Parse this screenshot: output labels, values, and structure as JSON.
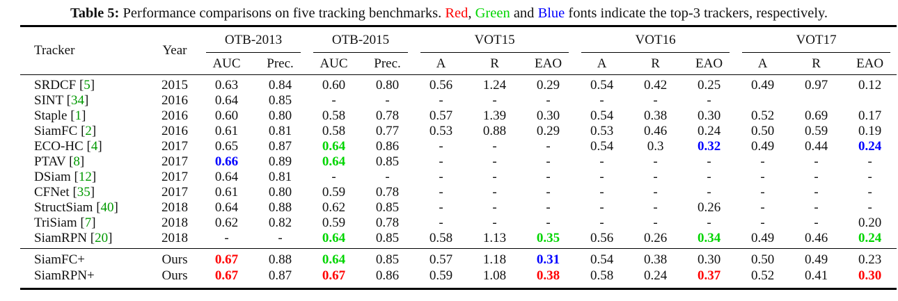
{
  "colors": {
    "red": "#ff0000",
    "green": "#00d500",
    "blue": "#0000ff",
    "citation": "#009900"
  },
  "caption": {
    "label": "Table 5:",
    "intro": " Performance comparisons on five tracking benchmarks. ",
    "red_word": "Red",
    "sep1": ", ",
    "green_word": "Green",
    "sep2": " and ",
    "blue_word": "Blue",
    "outro": " fonts indicate the top-3 trackers, respectively."
  },
  "table": {
    "headers": {
      "tracker": "Tracker",
      "year": "Year"
    },
    "groups": [
      {
        "label": "OTB-2013",
        "cols": [
          "AUC",
          "Prec."
        ]
      },
      {
        "label": "OTB-2015",
        "cols": [
          "AUC",
          "Prec."
        ]
      },
      {
        "label": "VOT15",
        "cols": [
          "A",
          "R",
          "EAO"
        ]
      },
      {
        "label": "VOT16",
        "cols": [
          "A",
          "R",
          "EAO"
        ]
      },
      {
        "label": "VOT17",
        "cols": [
          "A",
          "R",
          "EAO"
        ]
      }
    ],
    "rows": [
      {
        "tracker": "SRDCF",
        "cite": "5",
        "year": "2015",
        "cells": [
          "0.63",
          "0.84",
          "0.60",
          "0.80",
          "0.56",
          "1.24",
          "0.29",
          "0.54",
          "0.42",
          "0.25",
          "0.49",
          "0.97",
          "0.12"
        ]
      },
      {
        "tracker": "SINT",
        "cite": "34",
        "year": "2016",
        "cells": [
          "0.64",
          "0.85",
          "-",
          "-",
          "-",
          "-",
          "-",
          "-",
          "-",
          "-",
          "",
          "",
          ""
        ]
      },
      {
        "tracker": "Staple",
        "cite": "1",
        "year": "2016",
        "cells": [
          "0.60",
          "0.80",
          "0.58",
          "0.78",
          "0.57",
          "1.39",
          "0.30",
          "0.54",
          "0.38",
          "0.30",
          "0.52",
          "0.69",
          "0.17"
        ]
      },
      {
        "tracker": "SiamFC",
        "cite": "2",
        "year": "2016",
        "cells": [
          "0.61",
          "0.81",
          "0.58",
          "0.77",
          "0.53",
          "0.88",
          "0.29",
          "0.53",
          "0.46",
          "0.24",
          "0.50",
          "0.59",
          "0.19"
        ]
      },
      {
        "tracker": "ECO-HC",
        "cite": "4",
        "year": "2017",
        "cells": [
          "0.65",
          "0.87",
          {
            "v": "0.64",
            "c": "green"
          },
          "0.86",
          "-",
          "-",
          "-",
          "0.54",
          "0.3",
          {
            "v": "0.32",
            "c": "blue"
          },
          "0.49",
          "0.44",
          {
            "v": "0.24",
            "c": "blue"
          }
        ]
      },
      {
        "tracker": "PTAV",
        "cite": "8",
        "year": "2017",
        "cells": [
          {
            "v": "0.66",
            "c": "blue"
          },
          "0.89",
          {
            "v": "0.64",
            "c": "green"
          },
          "0.85",
          "-",
          "-",
          "-",
          "-",
          "-",
          "-",
          "-",
          "-",
          "-"
        ]
      },
      {
        "tracker": "DSiam",
        "cite": "12",
        "year": "2017",
        "cells": [
          "0.64",
          "0.81",
          "-",
          "-",
          "-",
          "-",
          "-",
          "-",
          "-",
          "-",
          "-",
          "-",
          "-"
        ]
      },
      {
        "tracker": "CFNet",
        "cite": "35",
        "year": "2017",
        "cells": [
          "0.61",
          "0.80",
          "0.59",
          "0.78",
          "-",
          "-",
          "-",
          "-",
          "-",
          "-",
          "-",
          "-",
          "-"
        ]
      },
      {
        "tracker": "StructSiam",
        "cite": "40",
        "year": "2018",
        "cells": [
          "0.64",
          "0.88",
          "0.62",
          "0.85",
          "-",
          "-",
          "-",
          "-",
          "-",
          "0.26",
          "-",
          "-",
          "-"
        ]
      },
      {
        "tracker": "TriSiam",
        "cite": "7",
        "year": "2018",
        "cells": [
          "0.62",
          "0.82",
          "0.59",
          "0.78",
          "-",
          "-",
          "-",
          "-",
          "-",
          "-",
          "-",
          "-",
          "0.20"
        ]
      },
      {
        "tracker": "SiamRPN",
        "cite": "20",
        "year": "2018",
        "cells": [
          "-",
          "-",
          {
            "v": "0.64",
            "c": "green"
          },
          "0.85",
          "0.58",
          "1.13",
          {
            "v": "0.35",
            "c": "green"
          },
          "0.56",
          "0.26",
          {
            "v": "0.34",
            "c": "green"
          },
          "0.49",
          "0.46",
          {
            "v": "0.24",
            "c": "green"
          }
        ]
      }
    ],
    "ours_rows": [
      {
        "tracker": "SiamFC+",
        "cite": null,
        "year": "Ours",
        "cells": [
          {
            "v": "0.67",
            "c": "red"
          },
          "0.88",
          {
            "v": "0.64",
            "c": "green"
          },
          "0.85",
          "0.57",
          "1.18",
          {
            "v": "0.31",
            "c": "blue"
          },
          "0.54",
          "0.38",
          "0.30",
          "0.50",
          "0.49",
          "0.23"
        ]
      },
      {
        "tracker": "SiamRPN+",
        "cite": null,
        "year": "Ours",
        "cells": [
          {
            "v": "0.67",
            "c": "red"
          },
          "0.87",
          {
            "v": "0.67",
            "c": "red"
          },
          "0.86",
          "0.59",
          "1.08",
          {
            "v": "0.38",
            "c": "red"
          },
          "0.58",
          "0.24",
          {
            "v": "0.37",
            "c": "red"
          },
          "0.52",
          "0.41",
          {
            "v": "0.30",
            "c": "red"
          }
        ]
      }
    ]
  }
}
